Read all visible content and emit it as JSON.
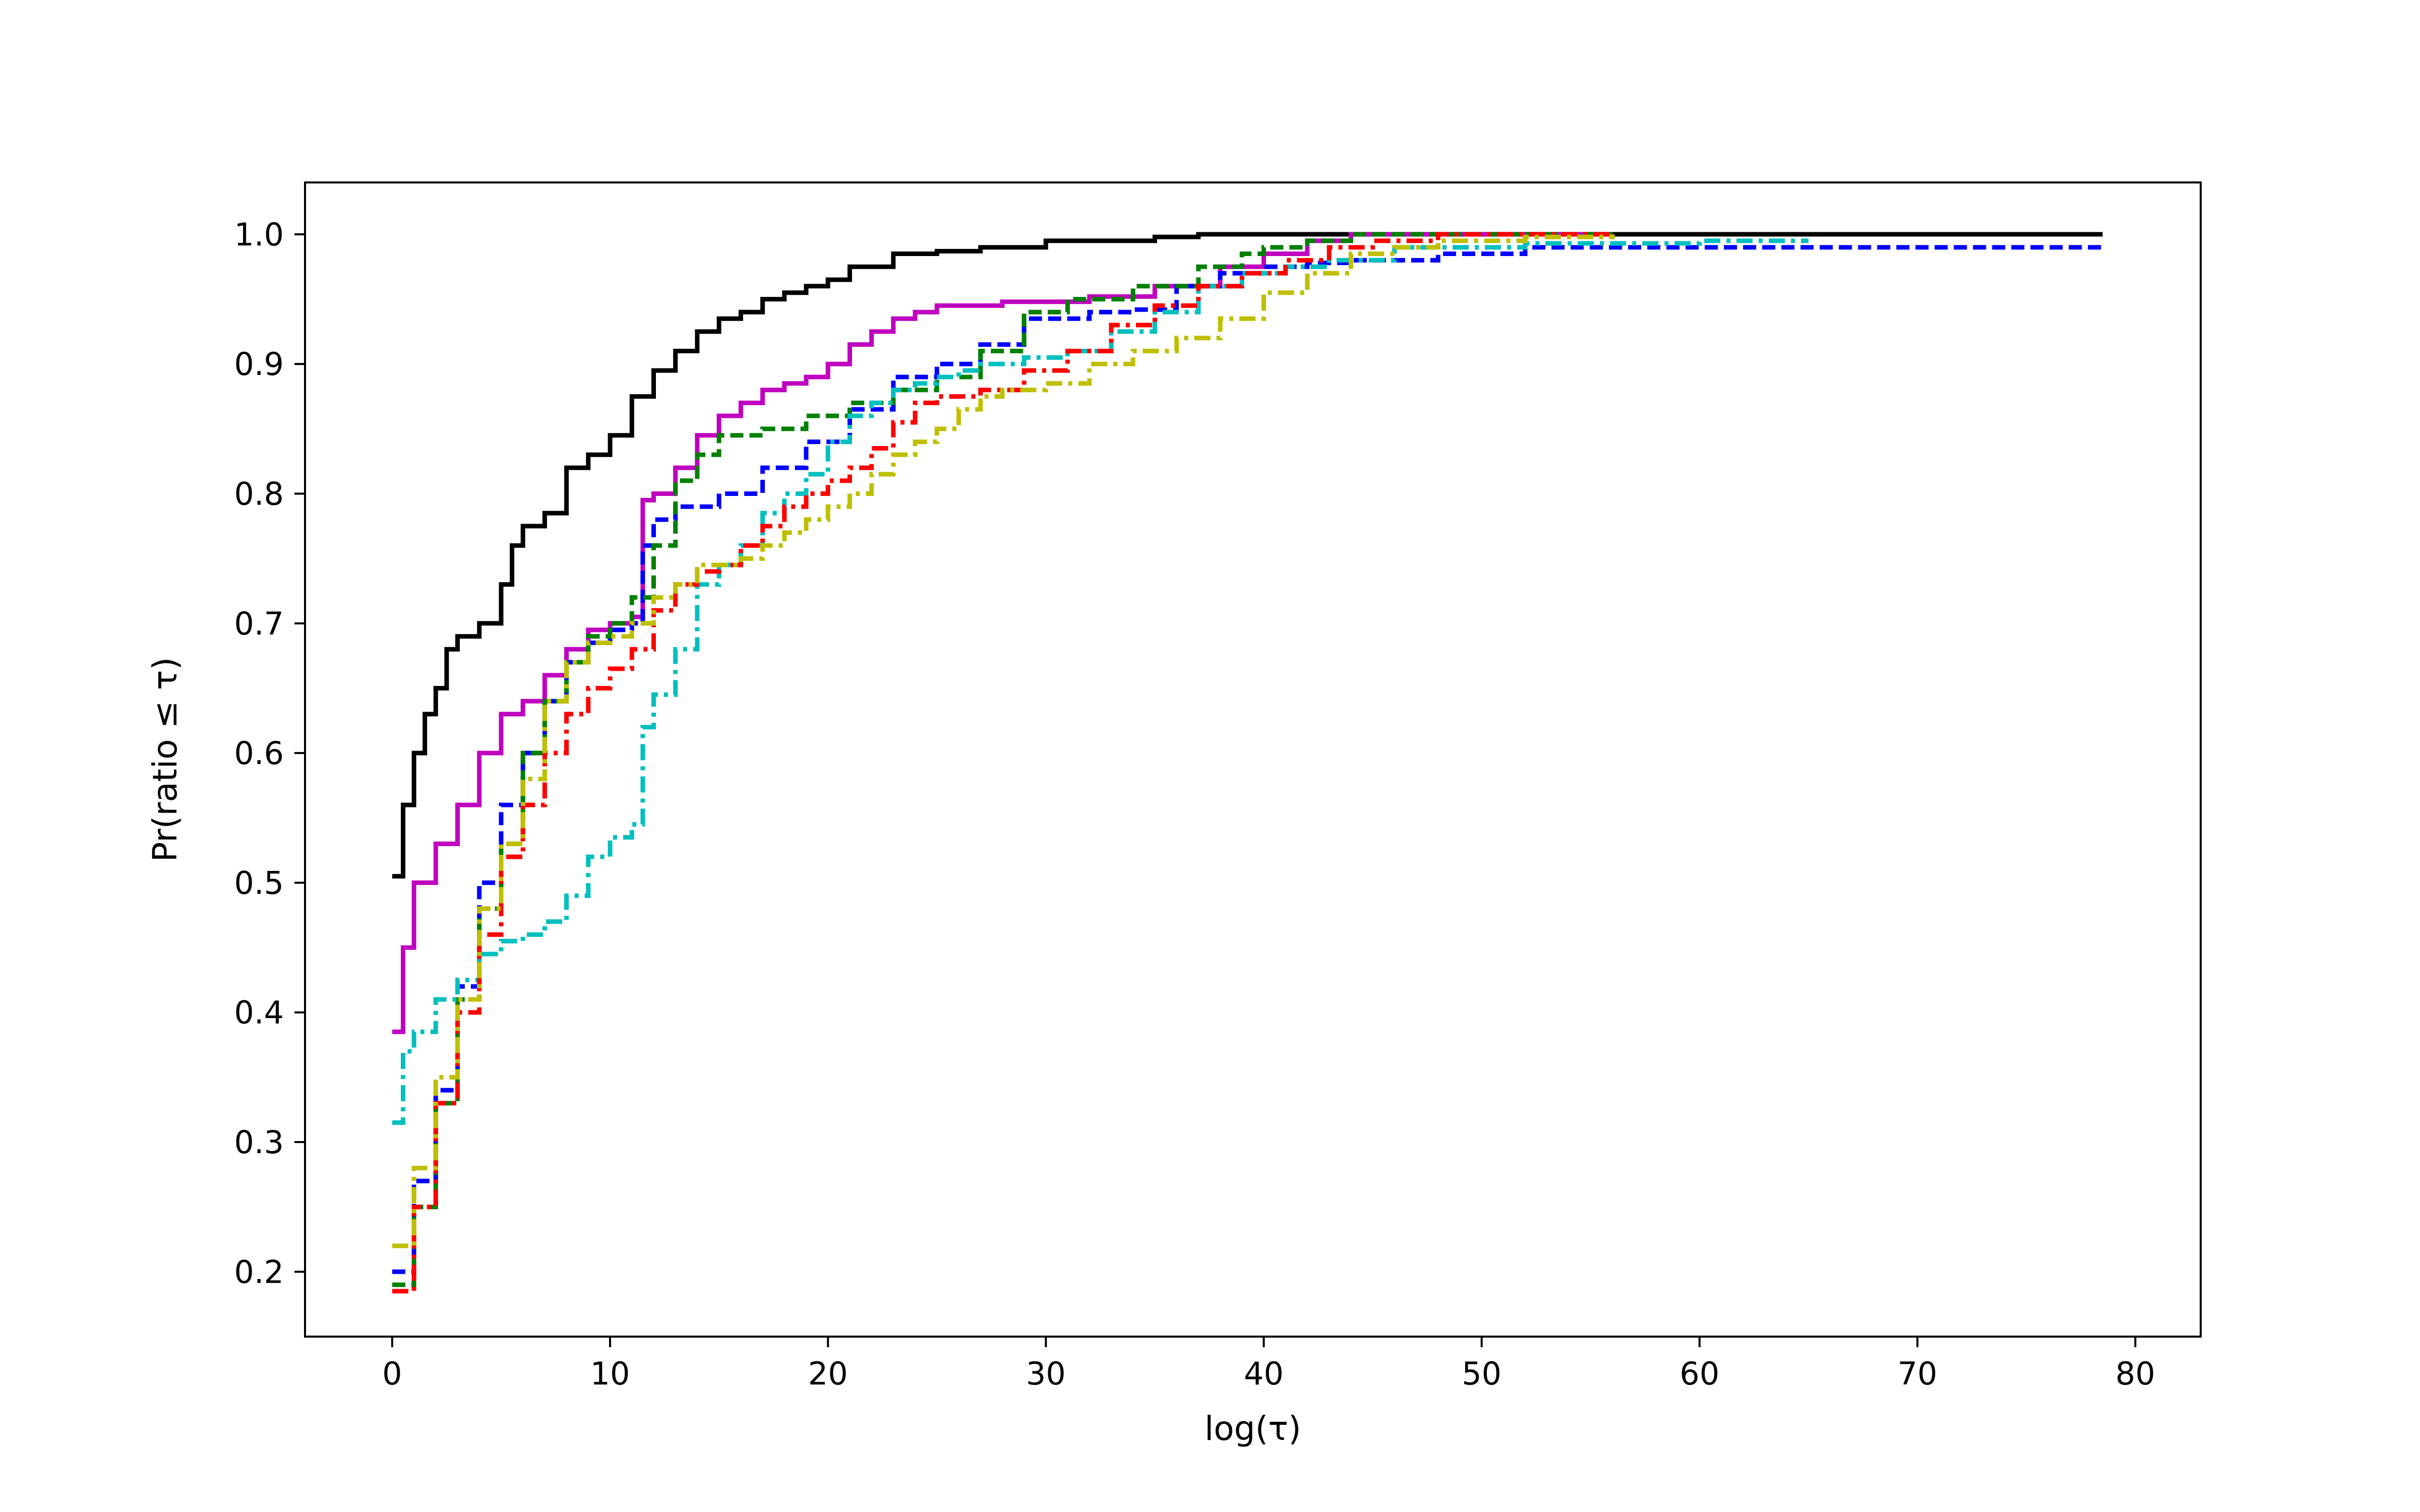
{
  "chart_data": {
    "type": "line",
    "title": "",
    "xlabel": "log(τ)",
    "ylabel": "Pr(ratio ≤ τ)",
    "xlim": [
      -4,
      83
    ],
    "ylim": [
      0.15,
      1.04
    ],
    "xticks": [
      0,
      10,
      20,
      30,
      40,
      50,
      60,
      70,
      80
    ],
    "yticks": [
      0.2,
      0.3,
      0.4,
      0.5,
      0.6,
      0.7,
      0.8,
      0.9,
      1.0
    ],
    "xtick_labels": [
      "0",
      "10",
      "20",
      "30",
      "40",
      "50",
      "60",
      "70",
      "80"
    ],
    "ytick_labels": [
      "0.2",
      "0.3",
      "0.4",
      "0.5",
      "0.6",
      "0.7",
      "0.8",
      "0.9",
      "1.0"
    ],
    "grid": false,
    "legend": "none",
    "series": [
      {
        "color": "#000000",
        "dash": "solid",
        "points": [
          [
            0,
            0.505
          ],
          [
            0.5,
            0.56
          ],
          [
            1,
            0.6
          ],
          [
            1.5,
            0.63
          ],
          [
            2,
            0.65
          ],
          [
            2.5,
            0.68
          ],
          [
            3,
            0.69
          ],
          [
            4,
            0.7
          ],
          [
            5,
            0.73
          ],
          [
            5.5,
            0.76
          ],
          [
            6,
            0.775
          ],
          [
            7,
            0.785
          ],
          [
            8,
            0.82
          ],
          [
            9,
            0.83
          ],
          [
            10,
            0.845
          ],
          [
            11,
            0.875
          ],
          [
            12,
            0.895
          ],
          [
            13,
            0.91
          ],
          [
            14,
            0.925
          ],
          [
            15,
            0.935
          ],
          [
            16,
            0.94
          ],
          [
            17,
            0.95
          ],
          [
            18,
            0.955
          ],
          [
            19,
            0.96
          ],
          [
            20,
            0.965
          ],
          [
            21,
            0.975
          ],
          [
            23,
            0.985
          ],
          [
            25,
            0.987
          ],
          [
            27,
            0.99
          ],
          [
            30,
            0.995
          ],
          [
            35,
            0.998
          ],
          [
            37,
            1.0
          ],
          [
            78.5,
            1.0
          ]
        ]
      },
      {
        "color": "#bf00bf",
        "dash": "solid",
        "points": [
          [
            0,
            0.385
          ],
          [
            0.5,
            0.45
          ],
          [
            1,
            0.5
          ],
          [
            2,
            0.53
          ],
          [
            3,
            0.56
          ],
          [
            4,
            0.6
          ],
          [
            5,
            0.63
          ],
          [
            6,
            0.64
          ],
          [
            7,
            0.66
          ],
          [
            8,
            0.68
          ],
          [
            9,
            0.695
          ],
          [
            10,
            0.7
          ],
          [
            11,
            0.705
          ],
          [
            11.5,
            0.795
          ],
          [
            12,
            0.8
          ],
          [
            13,
            0.82
          ],
          [
            14,
            0.845
          ],
          [
            15,
            0.86
          ],
          [
            16,
            0.87
          ],
          [
            17,
            0.88
          ],
          [
            18,
            0.885
          ],
          [
            19,
            0.89
          ],
          [
            20,
            0.9
          ],
          [
            21,
            0.915
          ],
          [
            22,
            0.925
          ],
          [
            23,
            0.935
          ],
          [
            24,
            0.94
          ],
          [
            25,
            0.945
          ],
          [
            28,
            0.948
          ],
          [
            32,
            0.952
          ],
          [
            35,
            0.96
          ],
          [
            38,
            0.975
          ],
          [
            40,
            0.985
          ],
          [
            42,
            0.995
          ],
          [
            44,
            1.0
          ],
          [
            56,
            1.0
          ]
        ]
      },
      {
        "color": "#0000ff",
        "dash": "dashed",
        "points": [
          [
            0,
            0.2
          ],
          [
            1,
            0.27
          ],
          [
            2,
            0.34
          ],
          [
            3,
            0.42
          ],
          [
            4,
            0.5
          ],
          [
            5,
            0.56
          ],
          [
            6,
            0.6
          ],
          [
            7,
            0.64
          ],
          [
            8,
            0.67
          ],
          [
            9,
            0.685
          ],
          [
            10,
            0.695
          ],
          [
            11,
            0.7
          ],
          [
            11.5,
            0.76
          ],
          [
            12,
            0.78
          ],
          [
            13,
            0.79
          ],
          [
            15,
            0.8
          ],
          [
            17,
            0.82
          ],
          [
            19,
            0.84
          ],
          [
            21,
            0.865
          ],
          [
            23,
            0.89
          ],
          [
            25,
            0.9
          ],
          [
            27,
            0.915
          ],
          [
            29,
            0.935
          ],
          [
            32,
            0.94
          ],
          [
            34,
            0.942
          ],
          [
            36,
            0.96
          ],
          [
            38,
            0.97
          ],
          [
            40,
            0.975
          ],
          [
            42,
            0.978
          ],
          [
            44,
            0.98
          ],
          [
            48,
            0.985
          ],
          [
            52,
            0.99
          ],
          [
            78.5,
            0.99
          ]
        ]
      },
      {
        "color": "#008000",
        "dash": "dashed",
        "points": [
          [
            0,
            0.19
          ],
          [
            1,
            0.25
          ],
          [
            2,
            0.33
          ],
          [
            3,
            0.41
          ],
          [
            4,
            0.48
          ],
          [
            5,
            0.53
          ],
          [
            6,
            0.6
          ],
          [
            7,
            0.64
          ],
          [
            8,
            0.67
          ],
          [
            9,
            0.69
          ],
          [
            10,
            0.7
          ],
          [
            11,
            0.72
          ],
          [
            12,
            0.76
          ],
          [
            13,
            0.81
          ],
          [
            14,
            0.83
          ],
          [
            15,
            0.845
          ],
          [
            17,
            0.85
          ],
          [
            19,
            0.86
          ],
          [
            21,
            0.87
          ],
          [
            23,
            0.88
          ],
          [
            25,
            0.89
          ],
          [
            27,
            0.91
          ],
          [
            29,
            0.94
          ],
          [
            31,
            0.95
          ],
          [
            34,
            0.96
          ],
          [
            37,
            0.975
          ],
          [
            39,
            0.985
          ],
          [
            40,
            0.99
          ],
          [
            42,
            0.995
          ],
          [
            44,
            1.0
          ],
          [
            56,
            1.0
          ]
        ]
      },
      {
        "color": "#00bfbf",
        "dash": "dashdot",
        "points": [
          [
            0,
            0.315
          ],
          [
            0.5,
            0.37
          ],
          [
            1,
            0.385
          ],
          [
            2,
            0.41
          ],
          [
            3,
            0.425
          ],
          [
            4,
            0.445
          ],
          [
            5,
            0.455
          ],
          [
            6,
            0.46
          ],
          [
            7,
            0.47
          ],
          [
            8,
            0.49
          ],
          [
            9,
            0.52
          ],
          [
            10,
            0.535
          ],
          [
            11,
            0.545
          ],
          [
            11.5,
            0.62
          ],
          [
            12,
            0.645
          ],
          [
            13,
            0.68
          ],
          [
            14,
            0.73
          ],
          [
            15,
            0.745
          ],
          [
            16,
            0.76
          ],
          [
            17,
            0.785
          ],
          [
            18,
            0.8
          ],
          [
            19,
            0.815
          ],
          [
            20,
            0.84
          ],
          [
            21,
            0.86
          ],
          [
            22,
            0.87
          ],
          [
            23,
            0.88
          ],
          [
            24,
            0.885
          ],
          [
            25,
            0.89
          ],
          [
            26,
            0.895
          ],
          [
            27,
            0.9
          ],
          [
            29,
            0.905
          ],
          [
            31,
            0.91
          ],
          [
            33,
            0.925
          ],
          [
            35,
            0.94
          ],
          [
            37,
            0.96
          ],
          [
            39,
            0.97
          ],
          [
            41,
            0.975
          ],
          [
            43,
            0.98
          ],
          [
            46,
            0.99
          ],
          [
            52,
            0.993
          ],
          [
            60,
            0.995
          ],
          [
            65,
            0.995
          ]
        ]
      },
      {
        "color": "#ff0000",
        "dash": "dashdot",
        "points": [
          [
            0,
            0.185
          ],
          [
            1,
            0.25
          ],
          [
            2,
            0.33
          ],
          [
            3,
            0.4
          ],
          [
            4,
            0.46
          ],
          [
            5,
            0.52
          ],
          [
            6,
            0.56
          ],
          [
            7,
            0.6
          ],
          [
            8,
            0.63
          ],
          [
            9,
            0.65
          ],
          [
            10,
            0.665
          ],
          [
            11,
            0.68
          ],
          [
            12,
            0.71
          ],
          [
            13,
            0.73
          ],
          [
            14,
            0.74
          ],
          [
            15,
            0.745
          ],
          [
            16,
            0.76
          ],
          [
            17,
            0.775
          ],
          [
            18,
            0.79
          ],
          [
            19,
            0.8
          ],
          [
            20,
            0.81
          ],
          [
            21,
            0.82
          ],
          [
            22,
            0.835
          ],
          [
            23,
            0.855
          ],
          [
            24,
            0.87
          ],
          [
            25,
            0.875
          ],
          [
            27,
            0.88
          ],
          [
            29,
            0.895
          ],
          [
            31,
            0.91
          ],
          [
            33,
            0.93
          ],
          [
            35,
            0.945
          ],
          [
            37,
            0.96
          ],
          [
            39,
            0.97
          ],
          [
            41,
            0.98
          ],
          [
            43,
            0.99
          ],
          [
            45,
            0.995
          ],
          [
            48,
            1.0
          ],
          [
            56,
            1.0
          ]
        ]
      },
      {
        "color": "#bfbf00",
        "dash": "dashdot",
        "points": [
          [
            0,
            0.22
          ],
          [
            1,
            0.28
          ],
          [
            2,
            0.35
          ],
          [
            3,
            0.41
          ],
          [
            4,
            0.48
          ],
          [
            5,
            0.53
          ],
          [
            6,
            0.58
          ],
          [
            7,
            0.64
          ],
          [
            8,
            0.67
          ],
          [
            9,
            0.685
          ],
          [
            10,
            0.69
          ],
          [
            11,
            0.7
          ],
          [
            12,
            0.72
          ],
          [
            13,
            0.73
          ],
          [
            14,
            0.745
          ],
          [
            16,
            0.75
          ],
          [
            17,
            0.76
          ],
          [
            18,
            0.77
          ],
          [
            19,
            0.78
          ],
          [
            20,
            0.79
          ],
          [
            21,
            0.8
          ],
          [
            22,
            0.815
          ],
          [
            23,
            0.83
          ],
          [
            24,
            0.84
          ],
          [
            25,
            0.85
          ],
          [
            26,
            0.865
          ],
          [
            27,
            0.875
          ],
          [
            28,
            0.88
          ],
          [
            30,
            0.885
          ],
          [
            32,
            0.9
          ],
          [
            34,
            0.91
          ],
          [
            36,
            0.92
          ],
          [
            38,
            0.935
          ],
          [
            40,
            0.955
          ],
          [
            42,
            0.97
          ],
          [
            44,
            0.985
          ],
          [
            46,
            0.99
          ],
          [
            48,
            0.995
          ],
          [
            52,
            0.998
          ],
          [
            56,
            1.0
          ]
        ]
      }
    ]
  }
}
